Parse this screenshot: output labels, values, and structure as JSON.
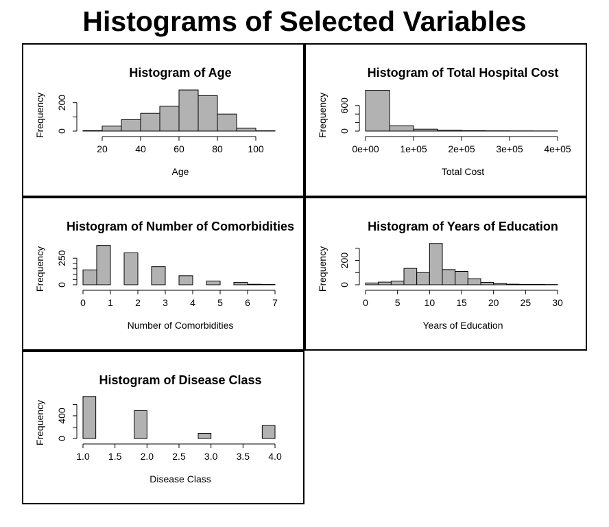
{
  "page": {
    "title": "Histograms of Selected Variables"
  },
  "colors": {
    "bar_fill": "#b2b2b2",
    "bar_stroke": "#000000",
    "border": "#000000"
  },
  "chart_data": [
    {
      "id": "age",
      "type": "bar",
      "title": "Histogram of Age",
      "xlabel": "Age",
      "ylabel": "Frequency",
      "xlim": [
        10,
        110
      ],
      "ylim": [
        0,
        300
      ],
      "xticks": [
        20,
        40,
        60,
        80,
        100
      ],
      "xtick_labels": [
        "20",
        "40",
        "60",
        "80",
        "100"
      ],
      "yticks": [
        0,
        100,
        200
      ],
      "ytick_labels": [
        "0",
        "",
        "200"
      ],
      "x_axis_line": [
        10,
        110
      ],
      "bins": [
        {
          "x0": 10,
          "x1": 20,
          "count": 3
        },
        {
          "x0": 20,
          "x1": 30,
          "count": 35
        },
        {
          "x0": 30,
          "x1": 40,
          "count": 80
        },
        {
          "x0": 40,
          "x1": 50,
          "count": 125
        },
        {
          "x0": 50,
          "x1": 60,
          "count": 175
        },
        {
          "x0": 60,
          "x1": 70,
          "count": 290
        },
        {
          "x0": 70,
          "x1": 80,
          "count": 250
        },
        {
          "x0": 80,
          "x1": 90,
          "count": 120
        },
        {
          "x0": 90,
          "x1": 100,
          "count": 20
        },
        {
          "x0": 100,
          "x1": 110,
          "count": 2
        }
      ]
    },
    {
      "id": "cost",
      "type": "bar",
      "title": "Histogram of Total Hospital Cost",
      "xlabel": "Total Cost",
      "ylabel": "Frequency",
      "xlim": [
        0,
        400000
      ],
      "ylim": [
        0,
        1000
      ],
      "xticks": [
        0,
        100000,
        200000,
        300000,
        400000
      ],
      "xtick_labels": [
        "0e+00",
        "1e+05",
        "2e+05",
        "3e+05",
        "4e+05"
      ],
      "yticks": [
        0,
        200,
        400,
        600
      ],
      "ytick_labels": [
        "0",
        "",
        "",
        "600"
      ],
      "bins": [
        {
          "x0": 0,
          "x1": 50000,
          "count": 960
        },
        {
          "x0": 50000,
          "x1": 100000,
          "count": 125
        },
        {
          "x0": 100000,
          "x1": 150000,
          "count": 45
        },
        {
          "x0": 150000,
          "x1": 200000,
          "count": 20
        },
        {
          "x0": 200000,
          "x1": 250000,
          "count": 10
        },
        {
          "x0": 250000,
          "x1": 300000,
          "count": 6
        },
        {
          "x0": 300000,
          "x1": 350000,
          "count": 4
        },
        {
          "x0": 350000,
          "x1": 400000,
          "count": 3
        }
      ]
    },
    {
      "id": "comorbid",
      "type": "bar",
      "title": "Histogram of Number of Comorbidities",
      "xlabel": "Number of Comorbidities",
      "ylabel": "Frequency",
      "xlim": [
        0,
        7
      ],
      "ylim": [
        0,
        400
      ],
      "xticks": [
        0,
        1,
        2,
        3,
        4,
        5,
        6,
        7
      ],
      "xtick_labels": [
        "0",
        "1",
        "2",
        "3",
        "4",
        "5",
        "6",
        "7"
      ],
      "yticks": [
        0,
        50,
        100,
        150,
        200,
        250
      ],
      "ytick_labels": [
        "0",
        "",
        "",
        "",
        "",
        "250"
      ],
      "bins": [
        {
          "x0": 0,
          "x1": 0.5,
          "count": 140
        },
        {
          "x0": 0.5,
          "x1": 1,
          "count": 370
        },
        {
          "x0": 1,
          "x1": 1.5,
          "count": 0
        },
        {
          "x0": 1.5,
          "x1": 2,
          "count": 300
        },
        {
          "x0": 2,
          "x1": 2.5,
          "count": 0
        },
        {
          "x0": 2.5,
          "x1": 3,
          "count": 170
        },
        {
          "x0": 3,
          "x1": 3.5,
          "count": 0
        },
        {
          "x0": 3.5,
          "x1": 4,
          "count": 85
        },
        {
          "x0": 4,
          "x1": 4.5,
          "count": 0
        },
        {
          "x0": 4.5,
          "x1": 5,
          "count": 35
        },
        {
          "x0": 5,
          "x1": 5.5,
          "count": 0
        },
        {
          "x0": 5.5,
          "x1": 6,
          "count": 22
        },
        {
          "x0": 6,
          "x1": 6.5,
          "count": 5
        },
        {
          "x0": 6.5,
          "x1": 7,
          "count": 3
        }
      ]
    },
    {
      "id": "education",
      "type": "bar",
      "title": "Histogram of Years of Education",
      "xlabel": "Years of Education",
      "ylabel": "Frequency",
      "xlim": [
        0,
        30
      ],
      "ylim": [
        0,
        350
      ],
      "xticks": [
        0,
        5,
        10,
        15,
        20,
        25,
        30
      ],
      "xtick_labels": [
        "0",
        "5",
        "10",
        "15",
        "20",
        "25",
        "30"
      ],
      "yticks": [
        0,
        100,
        200,
        300
      ],
      "ytick_labels": [
        "0",
        "",
        "200",
        ""
      ],
      "bins": [
        {
          "x0": 0,
          "x1": 2,
          "count": 15
        },
        {
          "x0": 2,
          "x1": 4,
          "count": 22
        },
        {
          "x0": 4,
          "x1": 6,
          "count": 30
        },
        {
          "x0": 6,
          "x1": 8,
          "count": 135
        },
        {
          "x0": 8,
          "x1": 10,
          "count": 100
        },
        {
          "x0": 10,
          "x1": 12,
          "count": 340
        },
        {
          "x0": 12,
          "x1": 14,
          "count": 125
        },
        {
          "x0": 14,
          "x1": 16,
          "count": 110
        },
        {
          "x0": 16,
          "x1": 18,
          "count": 50
        },
        {
          "x0": 18,
          "x1": 20,
          "count": 20
        },
        {
          "x0": 20,
          "x1": 22,
          "count": 10
        },
        {
          "x0": 22,
          "x1": 24,
          "count": 5
        },
        {
          "x0": 24,
          "x1": 26,
          "count": 3
        },
        {
          "x0": 26,
          "x1": 28,
          "count": 3
        },
        {
          "x0": 28,
          "x1": 30,
          "count": 2
        }
      ]
    },
    {
      "id": "disease",
      "type": "bar",
      "title": "Histogram of Disease Class",
      "xlabel": "Disease Class",
      "ylabel": "Frequency",
      "xlim": [
        1,
        4
      ],
      "ylim": [
        0,
        750
      ],
      "xticks": [
        1.0,
        1.5,
        2.0,
        2.5,
        3.0,
        3.5,
        4.0
      ],
      "xtick_labels": [
        "1.0",
        "1.5",
        "2.0",
        "2.5",
        "3.0",
        "3.5",
        "4.0"
      ],
      "yticks": [
        0,
        200,
        400,
        600
      ],
      "ytick_labels": [
        "0",
        "",
        "400",
        ""
      ],
      "bins": [
        {
          "x0": 1.0,
          "x1": 1.2,
          "count": 740
        },
        {
          "x0": 1.2,
          "x1": 1.4,
          "count": 0
        },
        {
          "x0": 1.4,
          "x1": 1.6,
          "count": 0
        },
        {
          "x0": 1.6,
          "x1": 1.8,
          "count": 0
        },
        {
          "x0": 1.8,
          "x1": 2.0,
          "count": 490
        },
        {
          "x0": 2.0,
          "x1": 2.2,
          "count": 0
        },
        {
          "x0": 2.2,
          "x1": 2.4,
          "count": 0
        },
        {
          "x0": 2.4,
          "x1": 2.6,
          "count": 0
        },
        {
          "x0": 2.6,
          "x1": 2.8,
          "count": 0
        },
        {
          "x0": 2.8,
          "x1": 3.0,
          "count": 90
        },
        {
          "x0": 3.0,
          "x1": 3.2,
          "count": 0
        },
        {
          "x0": 3.2,
          "x1": 3.4,
          "count": 0
        },
        {
          "x0": 3.4,
          "x1": 3.6,
          "count": 0
        },
        {
          "x0": 3.6,
          "x1": 3.8,
          "count": 0
        },
        {
          "x0": 3.8,
          "x1": 4.0,
          "count": 230
        }
      ]
    }
  ]
}
